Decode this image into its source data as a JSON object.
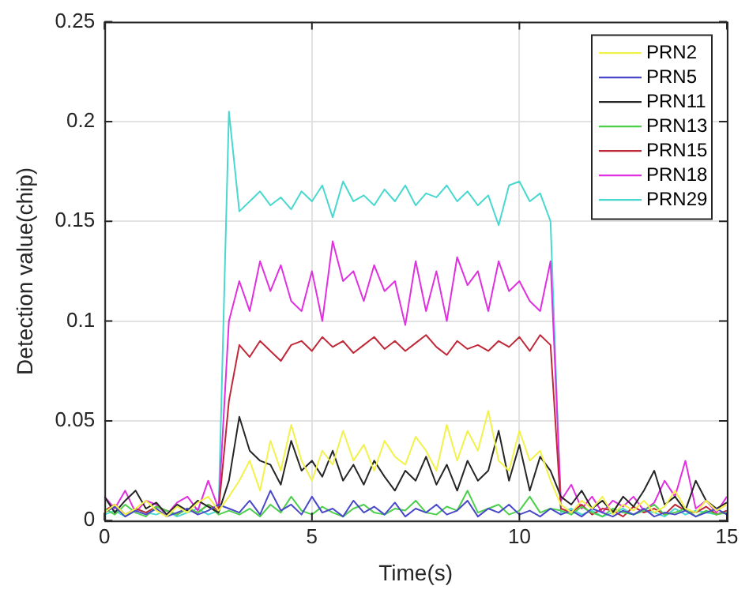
{
  "chart_data": {
    "type": "line",
    "xlabel": "Time(s)",
    "ylabel": "Detection value(chip)",
    "x": [
      0,
      0.25,
      0.5,
      0.75,
      1,
      1.25,
      1.5,
      1.75,
      2,
      2.25,
      2.5,
      2.75,
      3,
      3.25,
      3.5,
      3.75,
      4,
      4.25,
      4.5,
      4.75,
      5,
      5.25,
      5.5,
      5.75,
      6,
      6.25,
      6.5,
      6.75,
      7,
      7.25,
      7.5,
      7.75,
      8,
      8.25,
      8.5,
      8.75,
      9,
      9.25,
      9.5,
      9.75,
      10,
      10.25,
      10.5,
      10.75,
      11,
      11.25,
      11.5,
      11.75,
      12,
      12.25,
      12.5,
      12.75,
      13,
      13.25,
      13.5,
      13.75,
      14,
      14.25,
      14.5,
      14.75,
      15
    ],
    "xlim": [
      0,
      15
    ],
    "xticks": [
      0,
      5,
      10,
      15
    ],
    "ylim": [
      0,
      0.25
    ],
    "yticks": [
      0,
      0.05,
      0.1,
      0.15,
      0.2,
      0.25
    ],
    "grid": true,
    "legend": "top right",
    "line_style": "solid",
    "marker": "none",
    "series": [
      {
        "name": "PRN2",
        "color": "#f2f24a",
        "values": [
          0.004,
          0.008,
          0.003,
          0.006,
          0.01,
          0.005,
          0.002,
          0.007,
          0.004,
          0.009,
          0.012,
          0.005,
          0.012,
          0.02,
          0.03,
          0.015,
          0.04,
          0.025,
          0.048,
          0.03,
          0.02,
          0.035,
          0.028,
          0.045,
          0.03,
          0.038,
          0.025,
          0.04,
          0.032,
          0.028,
          0.042,
          0.035,
          0.025,
          0.048,
          0.03,
          0.045,
          0.035,
          0.055,
          0.03,
          0.025,
          0.045,
          0.03,
          0.035,
          0.02,
          0.008,
          0.004,
          0.01,
          0.006,
          0.012,
          0.003,
          0.008,
          0.005,
          0.01,
          0.004,
          0.007,
          0.015,
          0.006,
          0.004,
          0.01,
          0.005,
          0.008
        ]
      },
      {
        "name": "PRN5",
        "color": "#4848c8",
        "values": [
          0.004,
          0.007,
          0.002,
          0.005,
          0.003,
          0.006,
          0.002,
          0.004,
          0.006,
          0.003,
          0.005,
          0.008,
          0.006,
          0.004,
          0.01,
          0.003,
          0.015,
          0.005,
          0.008,
          0.003,
          0.012,
          0.004,
          0.006,
          0.002,
          0.01,
          0.004,
          0.007,
          0.003,
          0.009,
          0.002,
          0.006,
          0.004,
          0.008,
          0.003,
          0.005,
          0.01,
          0.002,
          0.006,
          0.004,
          0.008,
          0.003,
          0.005,
          0.002,
          0.006,
          0.003,
          0.005,
          0.002,
          0.006,
          0.004,
          0.002,
          0.005,
          0.003,
          0.006,
          0.002,
          0.004,
          0.003,
          0.005,
          0.002,
          0.004,
          0.006,
          0.003
        ]
      },
      {
        "name": "PRN11",
        "color": "#262626",
        "values": [
          0.012,
          0.004,
          0.01,
          0.015,
          0.006,
          0.009,
          0.003,
          0.008,
          0.005,
          0.01,
          0.007,
          0.004,
          0.02,
          0.052,
          0.035,
          0.03,
          0.028,
          0.018,
          0.04,
          0.025,
          0.03,
          0.022,
          0.035,
          0.02,
          0.028,
          0.018,
          0.03,
          0.022,
          0.015,
          0.025,
          0.02,
          0.032,
          0.018,
          0.028,
          0.015,
          0.03,
          0.02,
          0.025,
          0.045,
          0.02,
          0.038,
          0.015,
          0.032,
          0.025,
          0.012,
          0.008,
          0.015,
          0.006,
          0.01,
          0.004,
          0.012,
          0.007,
          0.015,
          0.025,
          0.008,
          0.012,
          0.005,
          0.02,
          0.01,
          0.006,
          0.009
        ]
      },
      {
        "name": "PRN13",
        "color": "#4cd04c",
        "values": [
          0.006,
          0.003,
          0.008,
          0.004,
          0.002,
          0.007,
          0.005,
          0.003,
          0.006,
          0.004,
          0.008,
          0.003,
          0.005,
          0.003,
          0.006,
          0.002,
          0.008,
          0.004,
          0.012,
          0.005,
          0.003,
          0.007,
          0.004,
          0.002,
          0.006,
          0.008,
          0.004,
          0.003,
          0.006,
          0.005,
          0.01,
          0.004,
          0.003,
          0.007,
          0.005,
          0.015,
          0.004,
          0.006,
          0.008,
          0.003,
          0.005,
          0.012,
          0.004,
          0.006,
          0.005,
          0.003,
          0.007,
          0.004,
          0.002,
          0.006,
          0.004,
          0.003,
          0.005,
          0.008,
          0.003,
          0.004,
          0.006,
          0.002,
          0.005,
          0.003,
          0.004
        ]
      },
      {
        "name": "PRN15",
        "color": "#c02838",
        "values": [
          0.005,
          0.008,
          0.003,
          0.006,
          0.004,
          0.007,
          0.005,
          0.003,
          0.006,
          0.004,
          0.008,
          0.005,
          0.06,
          0.088,
          0.082,
          0.09,
          0.085,
          0.08,
          0.088,
          0.09,
          0.085,
          0.092,
          0.087,
          0.09,
          0.084,
          0.088,
          0.092,
          0.086,
          0.09,
          0.085,
          0.089,
          0.093,
          0.087,
          0.083,
          0.09,
          0.086,
          0.088,
          0.085,
          0.09,
          0.087,
          0.092,
          0.085,
          0.093,
          0.088,
          0.006,
          0.004,
          0.008,
          0.003,
          0.006,
          0.005,
          0.002,
          0.007,
          0.004,
          0.006,
          0.003,
          0.008,
          0.005,
          0.004,
          0.007,
          0.003,
          0.005
        ]
      },
      {
        "name": "PRN18",
        "color": "#e030e0",
        "values": [
          0.012,
          0.006,
          0.015,
          0.004,
          0.01,
          0.008,
          0.003,
          0.009,
          0.012,
          0.005,
          0.02,
          0.006,
          0.1,
          0.12,
          0.105,
          0.13,
          0.115,
          0.128,
          0.11,
          0.105,
          0.125,
          0.1,
          0.14,
          0.12,
          0.125,
          0.11,
          0.128,
          0.115,
          0.12,
          0.098,
          0.13,
          0.105,
          0.125,
          0.1,
          0.132,
          0.118,
          0.125,
          0.105,
          0.13,
          0.115,
          0.12,
          0.11,
          0.105,
          0.13,
          0.01,
          0.018,
          0.006,
          0.012,
          0.004,
          0.01,
          0.007,
          0.012,
          0.005,
          0.009,
          0.02,
          0.012,
          0.03,
          0.006,
          0.01,
          0.004,
          0.012
        ]
      },
      {
        "name": "PRN29",
        "color": "#48d8d0",
        "values": [
          0.003,
          0.005,
          0.002,
          0.006,
          0.004,
          0.003,
          0.005,
          0.002,
          0.004,
          0.006,
          0.003,
          0.005,
          0.205,
          0.155,
          0.16,
          0.165,
          0.158,
          0.162,
          0.156,
          0.165,
          0.16,
          0.168,
          0.152,
          0.17,
          0.16,
          0.163,
          0.158,
          0.166,
          0.16,
          0.168,
          0.158,
          0.164,
          0.162,
          0.168,
          0.16,
          0.165,
          0.158,
          0.163,
          0.148,
          0.168,
          0.17,
          0.16,
          0.164,
          0.15,
          0.004,
          0.006,
          0.003,
          0.005,
          0.002,
          0.004,
          0.006,
          0.003,
          0.005,
          0.004,
          0.002,
          0.006,
          0.003,
          0.005,
          0.004,
          0.003,
          0.005
        ]
      }
    ]
  }
}
